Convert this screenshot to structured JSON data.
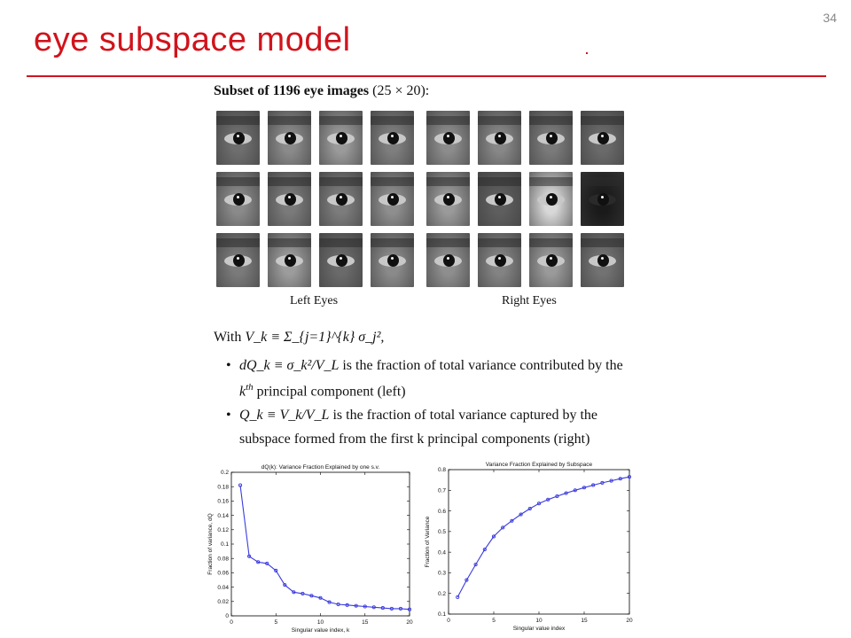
{
  "slide": {
    "number": "34",
    "title": "eye subspace model"
  },
  "figure": {
    "subset_caption_bold": "Subset of 1196 eye images",
    "subset_caption_dims": "(25 × 20):",
    "left_label": "Left Eyes",
    "right_label": "Right Eyes"
  },
  "text": {
    "with_prefix": "With",
    "with_formula": "V_k ≡ Σ_{j=1}^{k} σ_j²,",
    "bullet1_formula": "dQ_k ≡ σ_k²/V_L",
    "bullet1_text": "is the fraction of total variance contributed by the",
    "bullet1_line2_sup": "th",
    "bullet1_line2_text": "principal component (left)",
    "bullet2_formula": "Q_k ≡ V_k/V_L",
    "bullet2_text": "is the fraction of total variance captured by the",
    "bullet2_line2_text": "subspace formed from the first k principal components (right)"
  },
  "chart_data": [
    {
      "type": "line",
      "title": "dQ(k): Variance Fraction Explained by one s.v.",
      "xlabel": "Singular value index, k",
      "ylabel": "Fraction of variance, dQ",
      "xlim": [
        0,
        20
      ],
      "ylim": [
        0,
        0.2
      ],
      "xticks": [
        0,
        5,
        10,
        15,
        20
      ],
      "yticks": [
        0,
        0.02,
        0.04,
        0.06,
        0.08,
        0.1,
        0.12,
        0.14,
        0.16,
        0.18,
        0.2
      ],
      "ytick_labels": [
        "0",
        "0.02",
        "0.04",
        "0.06",
        "0.08",
        "0.1",
        "0.12",
        "0.14",
        "0.16",
        "0.18",
        "0.2"
      ],
      "grid": false,
      "color": "#3a3ae0",
      "x": [
        1,
        2,
        3,
        4,
        5,
        6,
        7,
        8,
        9,
        10,
        11,
        12,
        13,
        14,
        15,
        16,
        17,
        18,
        19,
        20
      ],
      "y": [
        0.182,
        0.083,
        0.075,
        0.073,
        0.063,
        0.043,
        0.033,
        0.031,
        0.028,
        0.025,
        0.019,
        0.016,
        0.015,
        0.014,
        0.013,
        0.012,
        0.011,
        0.01,
        0.01,
        0.009
      ]
    },
    {
      "type": "line",
      "title": "Variance Fraction Explained by Subspace",
      "xlabel": "Singular value index",
      "ylabel": "Fraction of Variance",
      "xlim": [
        0,
        20
      ],
      "ylim": [
        0.1,
        0.8
      ],
      "xticks": [
        0,
        5,
        10,
        15,
        20
      ],
      "yticks": [
        0.1,
        0.2,
        0.3,
        0.4,
        0.5,
        0.6,
        0.7,
        0.8
      ],
      "ytick_labels": [
        "0.1",
        "0.2",
        "0.3",
        "0.4",
        "0.5",
        "0.6",
        "0.7",
        "0.8"
      ],
      "grid": false,
      "color": "#3a3ae0",
      "x": [
        1,
        2,
        3,
        4,
        5,
        6,
        7,
        8,
        9,
        10,
        11,
        12,
        13,
        14,
        15,
        16,
        17,
        18,
        19,
        20
      ],
      "y": [
        0.182,
        0.265,
        0.34,
        0.413,
        0.476,
        0.519,
        0.552,
        0.583,
        0.611,
        0.636,
        0.655,
        0.671,
        0.686,
        0.7,
        0.713,
        0.725,
        0.736,
        0.746,
        0.756,
        0.765
      ]
    }
  ]
}
